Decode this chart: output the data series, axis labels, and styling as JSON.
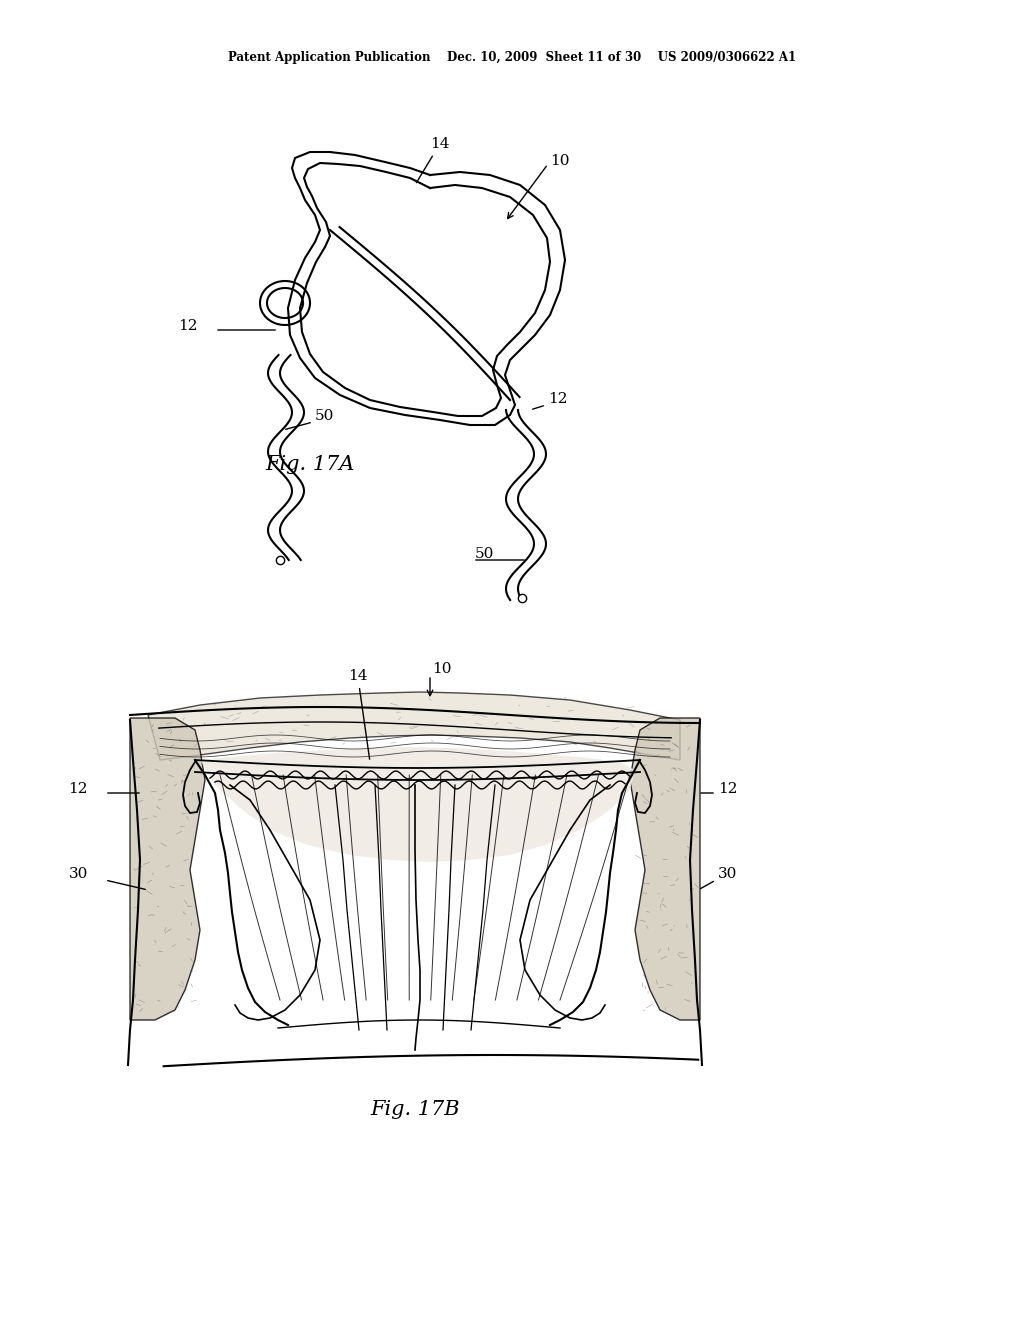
{
  "bg_color": "#ffffff",
  "line_color": "#000000",
  "header_text": "Patent Application Publication    Dec. 10, 2009  Sheet 11 of 30    US 2009/0306622 A1",
  "fig17a_label": "Fig. 17A",
  "fig17b_label": "Fig. 17B"
}
